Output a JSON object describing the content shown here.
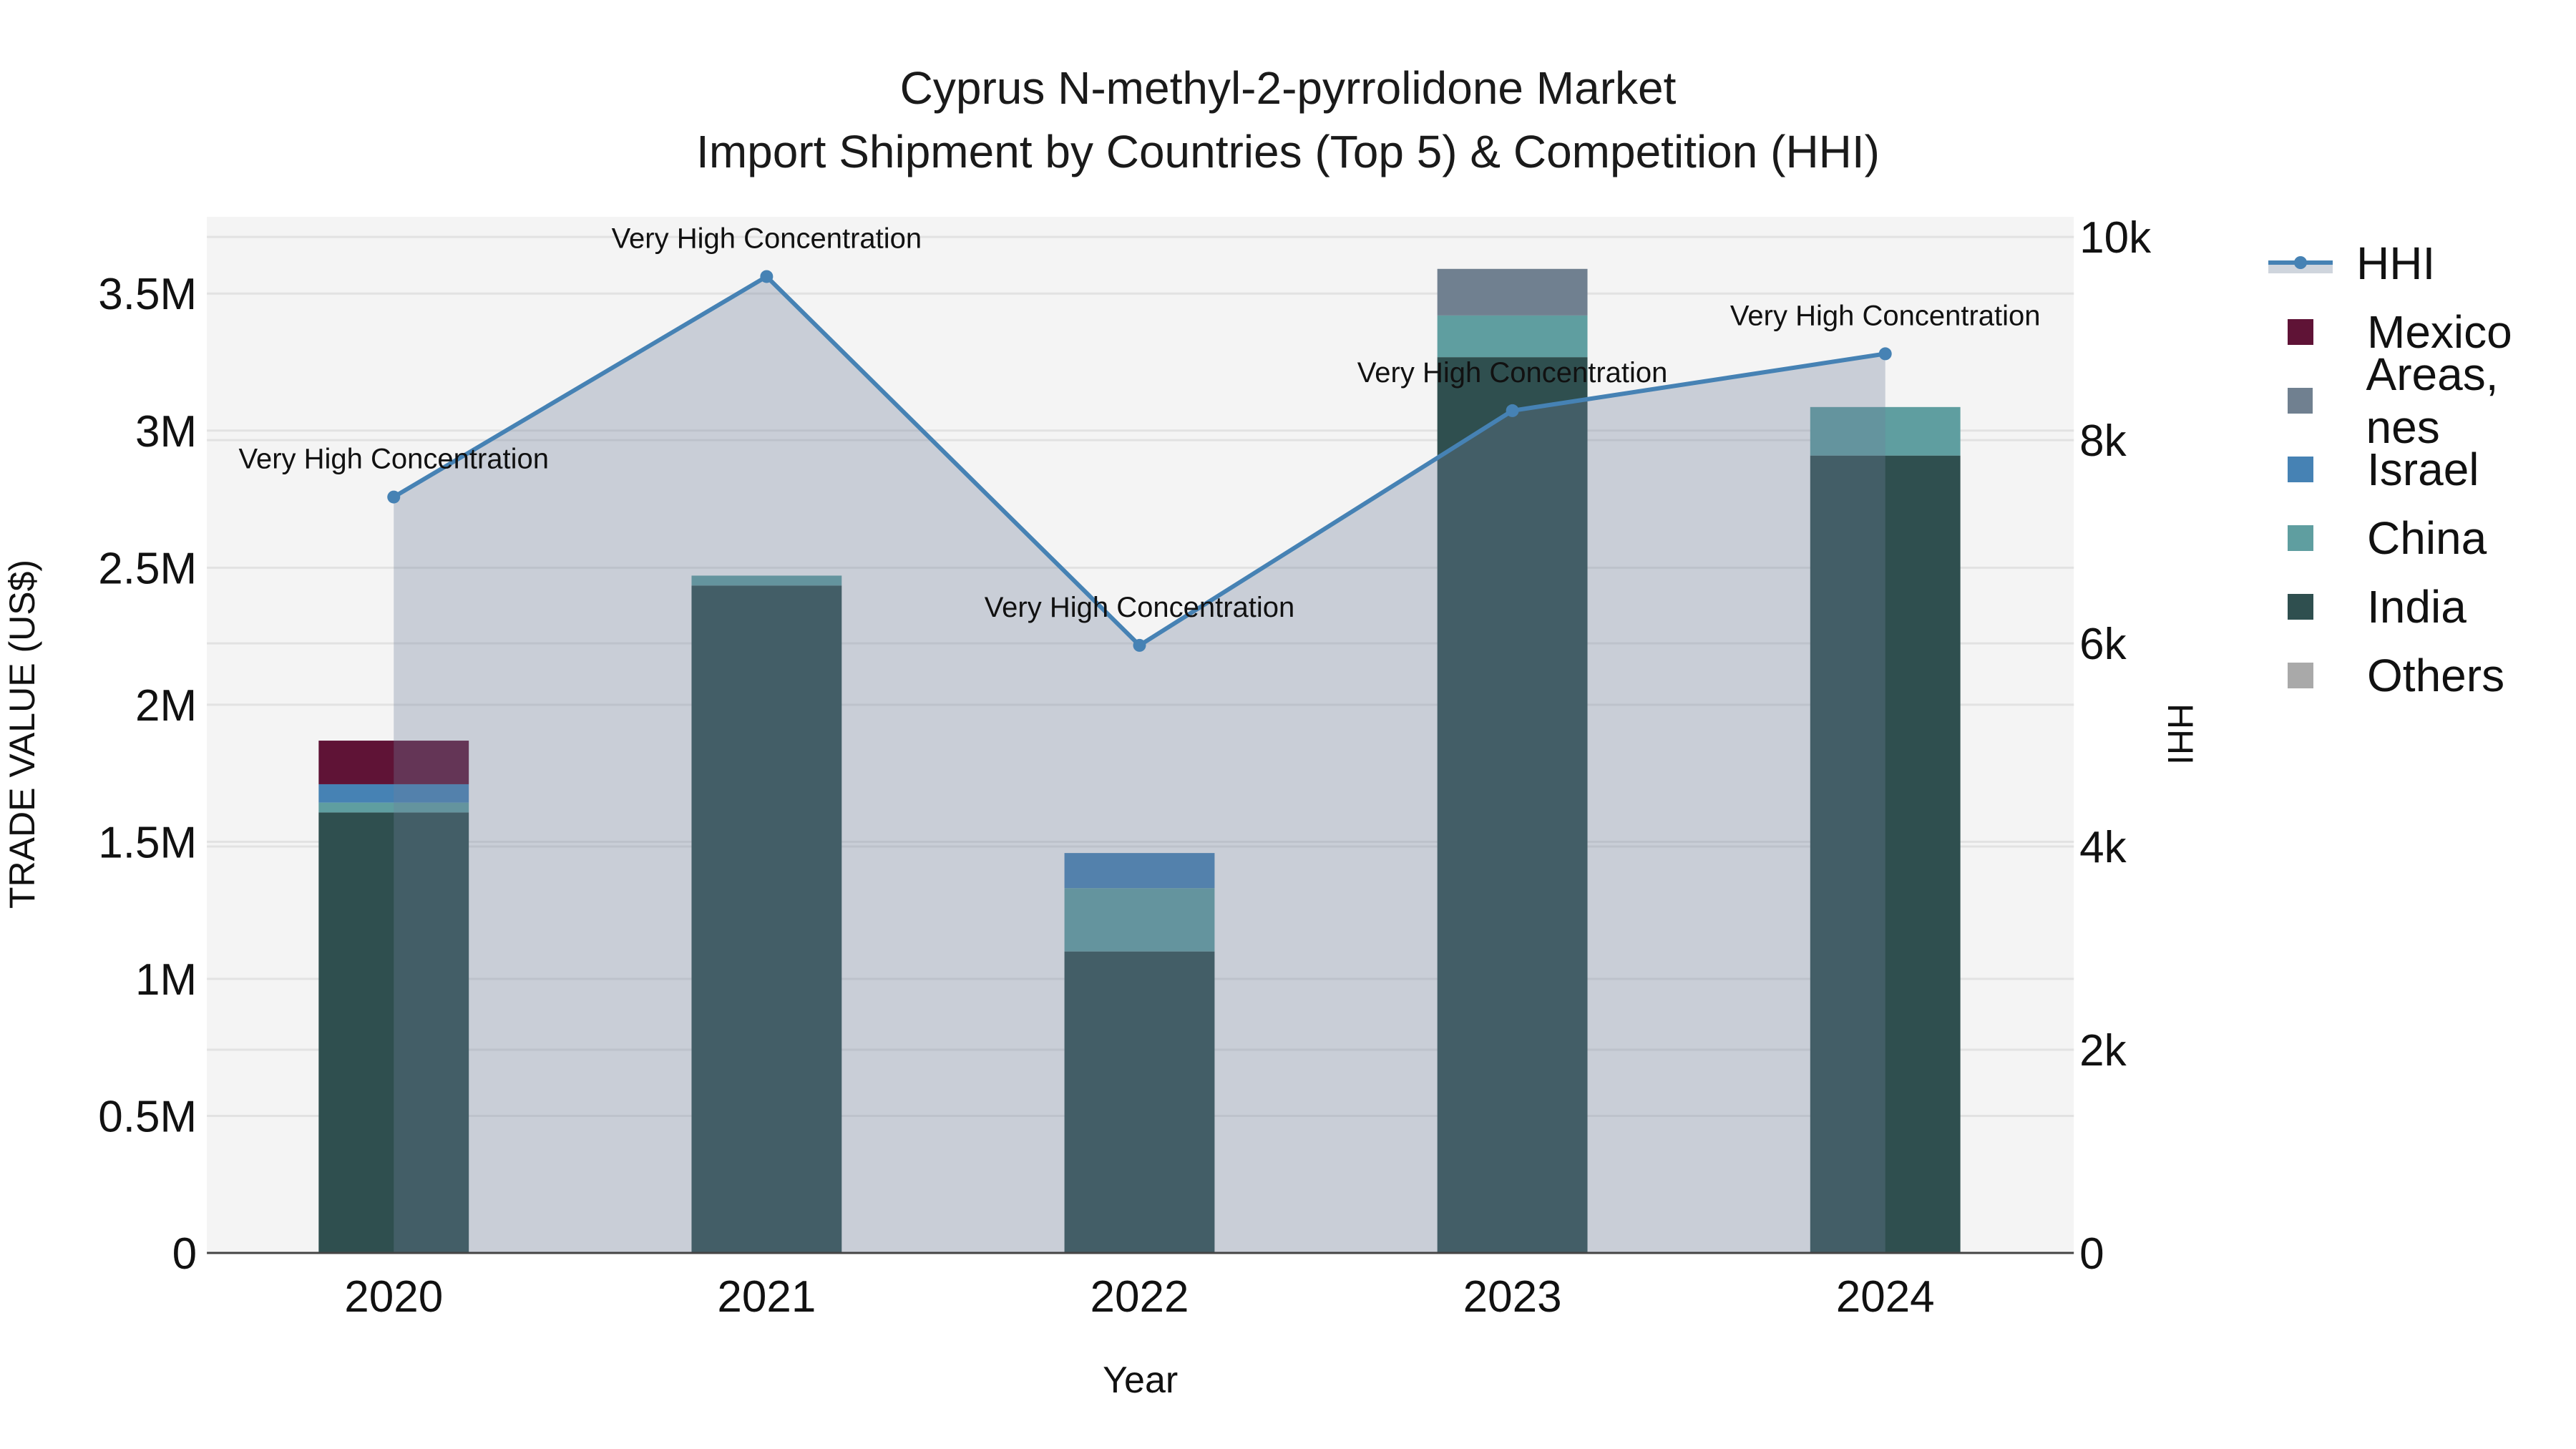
{
  "title": {
    "line1": "Cyprus N-methyl-2-pyrrolidone Market",
    "line2": "Import Shipment by Countries (Top 5) & Competition (HHI)"
  },
  "axes": {
    "x_title": "Year",
    "y_left_title": "TRADE VALUE (US$)",
    "y_right_title": "HHI",
    "y_left_ticks": [
      "0",
      "0.5M",
      "1M",
      "1.5M",
      "2M",
      "2.5M",
      "3M",
      "3.5M"
    ],
    "y_right_ticks": [
      "0",
      "2k",
      "4k",
      "6k",
      "8k",
      "10k"
    ]
  },
  "legend": [
    {
      "name": "HHI",
      "type": "line",
      "color": "#4682B4"
    },
    {
      "name": "Mexico",
      "type": "bar",
      "color": "#5F1336"
    },
    {
      "name": "Areas, nes",
      "type": "bar",
      "color": "#708090"
    },
    {
      "name": "Israel",
      "type": "bar",
      "color": "#4682B4"
    },
    {
      "name": "China",
      "type": "bar",
      "color": "#5F9EA0"
    },
    {
      "name": "India",
      "type": "bar",
      "color": "#2F4F4F"
    },
    {
      "name": "Others",
      "type": "bar",
      "color": "#A9A9A9"
    }
  ],
  "chart_data": {
    "type": "bar",
    "title": "Cyprus N-methyl-2-pyrrolidone Market — Import Shipment by Countries (Top 5) & Competition (HHI)",
    "xlabel": "Year",
    "ylabel": "TRADE VALUE (US$)",
    "y2label": "HHI",
    "categories": [
      "2020",
      "2021",
      "2022",
      "2023",
      "2024"
    ],
    "ylim": [
      0,
      3780000
    ],
    "y2lim": [
      0,
      10200
    ],
    "stacked": true,
    "series": [
      {
        "name": "India",
        "color": "#2F4F4F",
        "values": [
          1607000,
          2435000,
          1100000,
          3268000,
          2909000
        ]
      },
      {
        "name": "China",
        "color": "#5F9EA0",
        "values": [
          36000,
          36000,
          231000,
          152000,
          177000
        ]
      },
      {
        "name": "Israel",
        "color": "#4682B4",
        "values": [
          67000,
          0,
          128000,
          0,
          0
        ]
      },
      {
        "name": "Areas, nes",
        "color": "#708090",
        "values": [
          0,
          0,
          0,
          170000,
          0
        ]
      },
      {
        "name": "Mexico",
        "color": "#5F1336",
        "values": [
          159000,
          0,
          0,
          0,
          0
        ]
      },
      {
        "name": "Others",
        "color": "#A9A9A9",
        "values": [
          0,
          0,
          0,
          0,
          0
        ]
      }
    ],
    "line_series": {
      "name": "HHI",
      "axis": "right",
      "color": "#4682B4",
      "fill": "tozeroy",
      "values": [
        7440,
        9610,
        5980,
        8290,
        8850
      ]
    },
    "annotations": [
      {
        "x": "2020",
        "text": "Very High Concentration"
      },
      {
        "x": "2021",
        "text": "Very High Concentration"
      },
      {
        "x": "2022",
        "text": "Very High Concentration"
      },
      {
        "x": "2023",
        "text": "Very High Concentration"
      },
      {
        "x": "2024",
        "text": "Very High Concentration"
      }
    ],
    "grid": true,
    "legend_position": "right"
  }
}
